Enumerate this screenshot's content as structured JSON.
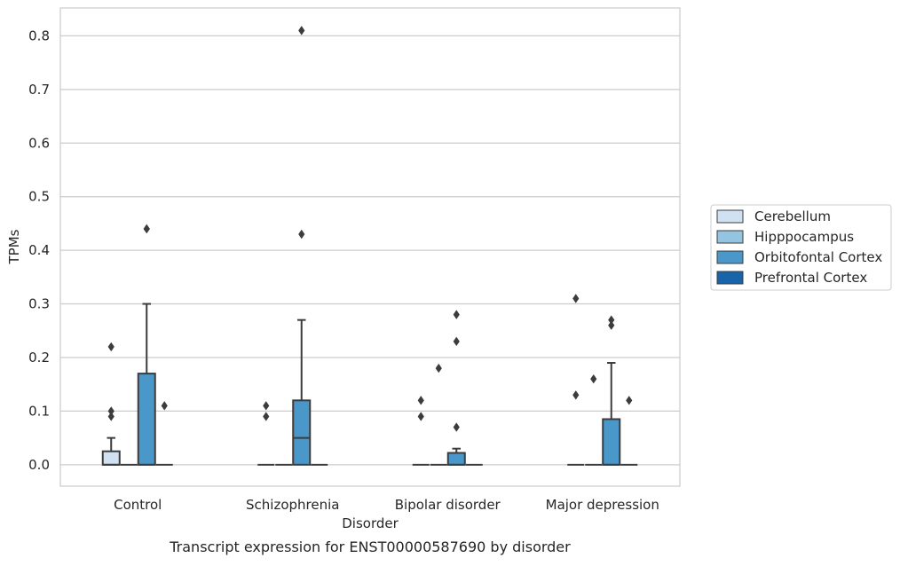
{
  "chart_data": {
    "type": "box",
    "caption": "Transcript expression for ENST00000587690 by disorder",
    "xlabel": "Disorder",
    "ylabel": "TPMs",
    "ylim": [
      -0.04,
      0.852
    ],
    "yticks": [
      0.0,
      0.1,
      0.2,
      0.3,
      0.4,
      0.5,
      0.6,
      0.7,
      0.8
    ],
    "ytick_labels": [
      "0.0",
      "0.1",
      "0.2",
      "0.3",
      "0.4",
      "0.5",
      "0.6",
      "0.7",
      "0.8"
    ],
    "grid": "horizontal",
    "legend_position": "right",
    "categories": [
      "Control",
      "Schizophrenia",
      "Bipolar disorder",
      "Major depression"
    ],
    "series": [
      {
        "name": "Cerebellum",
        "color": "#d0e1f2",
        "boxes": [
          {
            "q1": 0.0,
            "median": 0.0,
            "q3": 0.025,
            "whisker_low": 0.0,
            "whisker_high": 0.05,
            "outliers": [
              0.09,
              0.1,
              0.22
            ]
          },
          {
            "q1": 0.0,
            "median": 0.0,
            "q3": 0.0,
            "whisker_low": 0.0,
            "whisker_high": 0.0,
            "outliers": [
              0.09,
              0.11
            ]
          },
          {
            "q1": 0.0,
            "median": 0.0,
            "q3": 0.0,
            "whisker_low": 0.0,
            "whisker_high": 0.0,
            "outliers": [
              0.09,
              0.12
            ]
          },
          {
            "q1": 0.0,
            "median": 0.0,
            "q3": 0.0,
            "whisker_low": 0.0,
            "whisker_high": 0.0,
            "outliers": [
              0.13,
              0.31
            ]
          }
        ]
      },
      {
        "name": "Hipppocampus",
        "color": "#94c4df",
        "boxes": [
          {
            "q1": 0.0,
            "median": 0.0,
            "q3": 0.0,
            "whisker_low": 0.0,
            "whisker_high": 0.0,
            "outliers": []
          },
          {
            "q1": 0.0,
            "median": 0.0,
            "q3": 0.0,
            "whisker_low": 0.0,
            "whisker_high": 0.0,
            "outliers": []
          },
          {
            "q1": 0.0,
            "median": 0.0,
            "q3": 0.0,
            "whisker_low": 0.0,
            "whisker_high": 0.0,
            "outliers": [
              0.18
            ]
          },
          {
            "q1": 0.0,
            "median": 0.0,
            "q3": 0.0,
            "whisker_low": 0.0,
            "whisker_high": 0.0,
            "outliers": [
              0.16
            ]
          }
        ]
      },
      {
        "name": "Orbitofontal Cortex",
        "color": "#4a98c9",
        "boxes": [
          {
            "q1": 0.0,
            "median": 0.0,
            "q3": 0.17,
            "whisker_low": 0.0,
            "whisker_high": 0.3,
            "outliers": [
              0.44,
              0.44
            ]
          },
          {
            "q1": 0.0,
            "median": 0.05,
            "q3": 0.12,
            "whisker_low": 0.0,
            "whisker_high": 0.27,
            "outliers": [
              0.43,
              0.81
            ]
          },
          {
            "q1": 0.0,
            "median": 0.0,
            "q3": 0.022,
            "whisker_low": 0.0,
            "whisker_high": 0.03,
            "outliers": [
              0.07,
              0.23,
              0.28
            ]
          },
          {
            "q1": 0.0,
            "median": 0.0,
            "q3": 0.085,
            "whisker_low": 0.0,
            "whisker_high": 0.19,
            "outliers": [
              0.26,
              0.27
            ]
          }
        ]
      },
      {
        "name": "Prefrontal Cortex",
        "color": "#1764ab",
        "boxes": [
          {
            "q1": 0.0,
            "median": 0.0,
            "q3": 0.0,
            "whisker_low": 0.0,
            "whisker_high": 0.0,
            "outliers": [
              0.11
            ]
          },
          {
            "q1": 0.0,
            "median": 0.0,
            "q3": 0.0,
            "whisker_low": 0.0,
            "whisker_high": 0.0,
            "outliers": []
          },
          {
            "q1": 0.0,
            "median": 0.0,
            "q3": 0.0,
            "whisker_low": 0.0,
            "whisker_high": 0.0,
            "outliers": []
          },
          {
            "q1": 0.0,
            "median": 0.0,
            "q3": 0.0,
            "whisker_low": 0.0,
            "whisker_high": 0.0,
            "outliers": [
              0.12
            ]
          }
        ]
      }
    ]
  }
}
